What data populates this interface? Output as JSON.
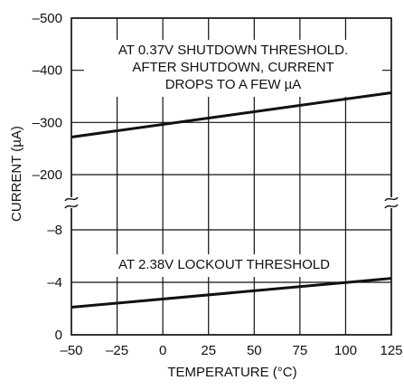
{
  "chart_data": {
    "type": "line",
    "xlabel": "TEMPERATURE (°C)",
    "ylabel": "CURRENT (µA)",
    "xlim": [
      -50,
      125
    ],
    "x_ticks": [
      "–50",
      "–25",
      "0",
      "25",
      "50",
      "75",
      "100",
      "125"
    ],
    "x_tick_values": [
      -50,
      -25,
      0,
      25,
      50,
      75,
      100,
      125
    ],
    "y_axis_break": true,
    "y_upper_ticks": [
      "–500",
      "–400",
      "–300",
      "–200"
    ],
    "y_upper_tick_values": [
      -500,
      -400,
      -300,
      -200
    ],
    "y_lower_ticks": [
      "–8",
      "–4",
      "0"
    ],
    "y_lower_tick_values": [
      -8,
      -4,
      0
    ],
    "grid": true,
    "series": [
      {
        "x": [
          -50,
          125
        ],
        "y": [
          -272,
          -357
        ],
        "color": "#111111"
      },
      {
        "x": [
          -50,
          125
        ],
        "y": [
          -2.1,
          -4.3
        ],
        "color": "#111111"
      }
    ],
    "annotations": [
      {
        "lines": [
          "AT 0.37V SHUTDOWN THRESHOLD.",
          "AFTER SHUTDOWN, CURRENT",
          "DROPS TO A FEW µA"
        ]
      },
      {
        "lines": [
          "AT 2.38V LOCKOUT THRESHOLD"
        ]
      }
    ]
  }
}
